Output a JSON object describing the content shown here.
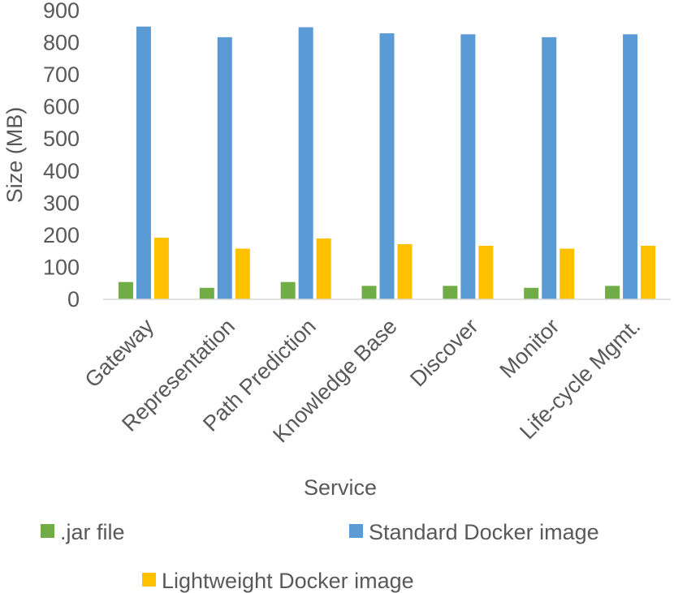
{
  "chart_data": {
    "type": "bar",
    "title": "",
    "xlabel": "Service",
    "ylabel": "Size (MB)",
    "ylim": [
      0,
      900
    ],
    "yticks": [
      0,
      100,
      200,
      300,
      400,
      500,
      600,
      700,
      800,
      900
    ],
    "grid": false,
    "legend_position": "bottom",
    "categories": [
      "Gateway",
      "Representation",
      "Path Prediction",
      "Knowledge Base",
      "Discover",
      "Monitor",
      "Life-cycle Mgmt."
    ],
    "series": [
      {
        "name": ".jar file",
        "color": "#70ad47",
        "values": [
          54,
          36,
          54,
          42,
          42,
          36,
          42
        ]
      },
      {
        "name": "Standard Docker image",
        "color": "#5b9bd5",
        "values": [
          850,
          817,
          848,
          829,
          826,
          817,
          826
        ]
      },
      {
        "name": "Lightweight Docker image",
        "color": "#ffc000",
        "values": [
          192,
          158,
          190,
          172,
          167,
          158,
          167
        ]
      }
    ]
  }
}
